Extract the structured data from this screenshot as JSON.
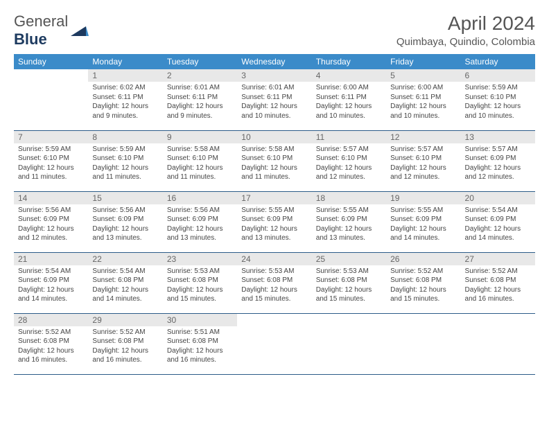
{
  "logo": {
    "text1": "General",
    "text2": "Blue"
  },
  "title": "April 2024",
  "location": "Quimbaya, Quindio, Colombia",
  "colors": {
    "header_bg": "#3b8bc9",
    "header_text": "#ffffff",
    "daynum_bg": "#e8e8e8",
    "daynum_text": "#666666",
    "body_text": "#444444",
    "rule": "#2b5b88",
    "page_bg": "#ffffff",
    "logo_gray": "#555555",
    "logo_blue": "#1d3a5f"
  },
  "weekdays": [
    "Sunday",
    "Monday",
    "Tuesday",
    "Wednesday",
    "Thursday",
    "Friday",
    "Saturday"
  ],
  "weeks": [
    [
      {
        "n": "",
        "t": ""
      },
      {
        "n": "1",
        "t": "Sunrise: 6:02 AM\nSunset: 6:11 PM\nDaylight: 12 hours and 9 minutes."
      },
      {
        "n": "2",
        "t": "Sunrise: 6:01 AM\nSunset: 6:11 PM\nDaylight: 12 hours and 9 minutes."
      },
      {
        "n": "3",
        "t": "Sunrise: 6:01 AM\nSunset: 6:11 PM\nDaylight: 12 hours and 10 minutes."
      },
      {
        "n": "4",
        "t": "Sunrise: 6:00 AM\nSunset: 6:11 PM\nDaylight: 12 hours and 10 minutes."
      },
      {
        "n": "5",
        "t": "Sunrise: 6:00 AM\nSunset: 6:11 PM\nDaylight: 12 hours and 10 minutes."
      },
      {
        "n": "6",
        "t": "Sunrise: 5:59 AM\nSunset: 6:10 PM\nDaylight: 12 hours and 10 minutes."
      }
    ],
    [
      {
        "n": "7",
        "t": "Sunrise: 5:59 AM\nSunset: 6:10 PM\nDaylight: 12 hours and 11 minutes."
      },
      {
        "n": "8",
        "t": "Sunrise: 5:59 AM\nSunset: 6:10 PM\nDaylight: 12 hours and 11 minutes."
      },
      {
        "n": "9",
        "t": "Sunrise: 5:58 AM\nSunset: 6:10 PM\nDaylight: 12 hours and 11 minutes."
      },
      {
        "n": "10",
        "t": "Sunrise: 5:58 AM\nSunset: 6:10 PM\nDaylight: 12 hours and 11 minutes."
      },
      {
        "n": "11",
        "t": "Sunrise: 5:57 AM\nSunset: 6:10 PM\nDaylight: 12 hours and 12 minutes."
      },
      {
        "n": "12",
        "t": "Sunrise: 5:57 AM\nSunset: 6:10 PM\nDaylight: 12 hours and 12 minutes."
      },
      {
        "n": "13",
        "t": "Sunrise: 5:57 AM\nSunset: 6:09 PM\nDaylight: 12 hours and 12 minutes."
      }
    ],
    [
      {
        "n": "14",
        "t": "Sunrise: 5:56 AM\nSunset: 6:09 PM\nDaylight: 12 hours and 12 minutes."
      },
      {
        "n": "15",
        "t": "Sunrise: 5:56 AM\nSunset: 6:09 PM\nDaylight: 12 hours and 13 minutes."
      },
      {
        "n": "16",
        "t": "Sunrise: 5:56 AM\nSunset: 6:09 PM\nDaylight: 12 hours and 13 minutes."
      },
      {
        "n": "17",
        "t": "Sunrise: 5:55 AM\nSunset: 6:09 PM\nDaylight: 12 hours and 13 minutes."
      },
      {
        "n": "18",
        "t": "Sunrise: 5:55 AM\nSunset: 6:09 PM\nDaylight: 12 hours and 13 minutes."
      },
      {
        "n": "19",
        "t": "Sunrise: 5:55 AM\nSunset: 6:09 PM\nDaylight: 12 hours and 14 minutes."
      },
      {
        "n": "20",
        "t": "Sunrise: 5:54 AM\nSunset: 6:09 PM\nDaylight: 12 hours and 14 minutes."
      }
    ],
    [
      {
        "n": "21",
        "t": "Sunrise: 5:54 AM\nSunset: 6:09 PM\nDaylight: 12 hours and 14 minutes."
      },
      {
        "n": "22",
        "t": "Sunrise: 5:54 AM\nSunset: 6:08 PM\nDaylight: 12 hours and 14 minutes."
      },
      {
        "n": "23",
        "t": "Sunrise: 5:53 AM\nSunset: 6:08 PM\nDaylight: 12 hours and 15 minutes."
      },
      {
        "n": "24",
        "t": "Sunrise: 5:53 AM\nSunset: 6:08 PM\nDaylight: 12 hours and 15 minutes."
      },
      {
        "n": "25",
        "t": "Sunrise: 5:53 AM\nSunset: 6:08 PM\nDaylight: 12 hours and 15 minutes."
      },
      {
        "n": "26",
        "t": "Sunrise: 5:52 AM\nSunset: 6:08 PM\nDaylight: 12 hours and 15 minutes."
      },
      {
        "n": "27",
        "t": "Sunrise: 5:52 AM\nSunset: 6:08 PM\nDaylight: 12 hours and 16 minutes."
      }
    ],
    [
      {
        "n": "28",
        "t": "Sunrise: 5:52 AM\nSunset: 6:08 PM\nDaylight: 12 hours and 16 minutes."
      },
      {
        "n": "29",
        "t": "Sunrise: 5:52 AM\nSunset: 6:08 PM\nDaylight: 12 hours and 16 minutes."
      },
      {
        "n": "30",
        "t": "Sunrise: 5:51 AM\nSunset: 6:08 PM\nDaylight: 12 hours and 16 minutes."
      },
      {
        "n": "",
        "t": ""
      },
      {
        "n": "",
        "t": ""
      },
      {
        "n": "",
        "t": ""
      },
      {
        "n": "",
        "t": ""
      }
    ]
  ]
}
